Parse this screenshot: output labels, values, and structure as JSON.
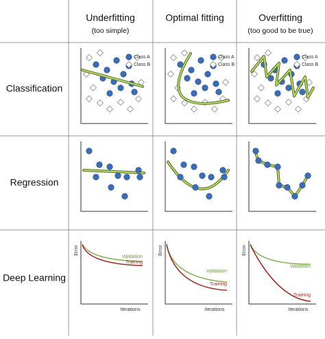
{
  "columns": [
    {
      "title": "Underfitting",
      "subtitle": "(too simple)"
    },
    {
      "title": "Optimal fitting"
    },
    {
      "title": "Overfitting",
      "subtitle": "(too good to be true)"
    }
  ],
  "rows": [
    "Classification",
    "Regression",
    "Deep Learning"
  ],
  "classification": [
    {
      "class_a": "Class A",
      "class_b": "Class B"
    },
    {
      "class_a": "Class A",
      "class_b": "Class B"
    },
    {
      "class_a": "Class A",
      "class_b": "Class B"
    }
  ],
  "deep_learning": [
    {
      "y_label": "Error",
      "x_label": "Iterations",
      "validation": "Validation",
      "training": "Training"
    },
    {
      "y_label": "Error",
      "x_label": "Iterations",
      "validation": "Validation",
      "training": "Training"
    },
    {
      "y_label": "Error",
      "x_label": "Iterations",
      "validation": "Validation",
      "training": "Training"
    }
  ]
}
